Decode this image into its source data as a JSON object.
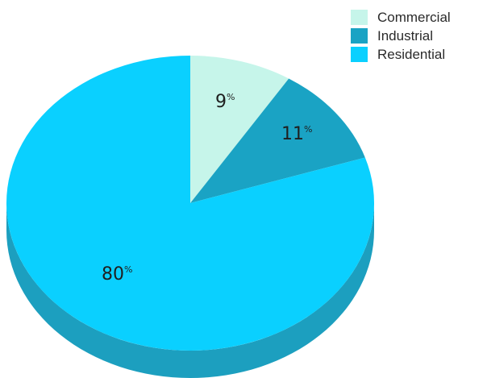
{
  "chart_data": {
    "type": "pie",
    "title": "",
    "slices": [
      {
        "label": "Commercial",
        "value": 9,
        "display": "9",
        "color": "#c6f5ea"
      },
      {
        "label": "Industrial",
        "value": 11,
        "display": "11",
        "color": "#1aa3c4"
      },
      {
        "label": "Residential",
        "value": 80,
        "display": "80",
        "color": "#0ad0ff"
      }
    ],
    "unit_symbol": "%",
    "depth_color": "#1c9fbf",
    "legend_position": "top-right",
    "style": "3d"
  }
}
